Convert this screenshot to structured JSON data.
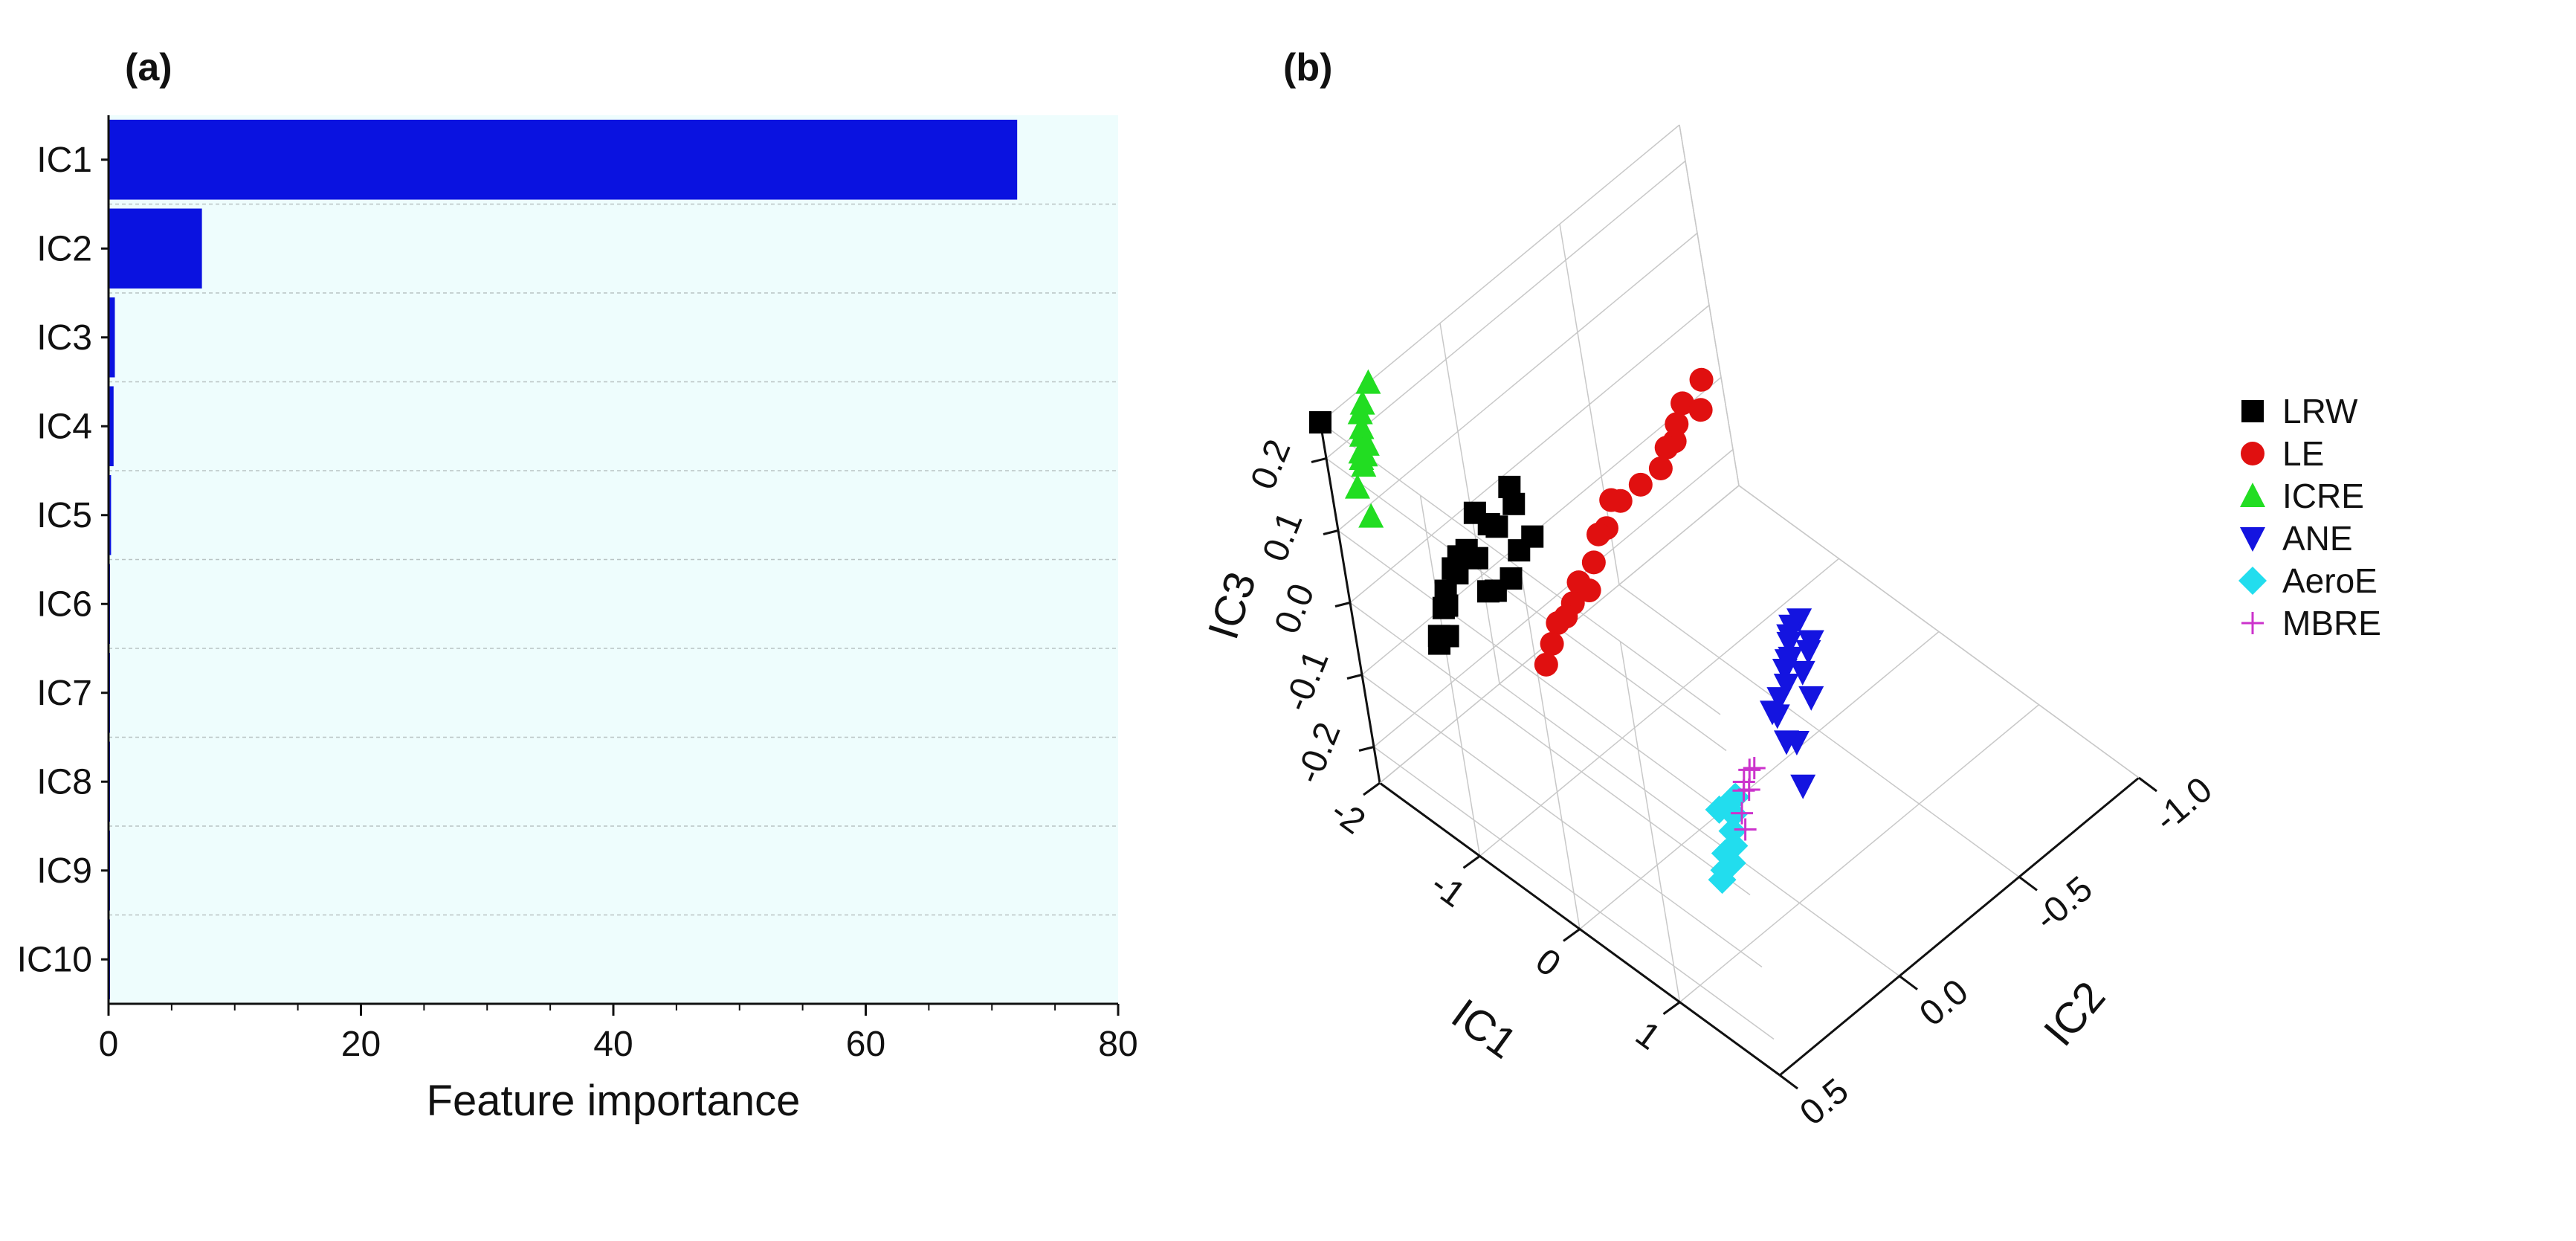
{
  "panels": {
    "a": {
      "label": "(a)"
    },
    "b": {
      "label": "(b)"
    }
  },
  "colors": {
    "bar": "#0a12e0",
    "plot_bg": "#eefdfd",
    "LRW": "#000000",
    "LE": "#e01010",
    "ICRE": "#22dd22",
    "ANE": "#1414e0",
    "AeroE": "#22ddee",
    "MBRE": "#cc33cc"
  },
  "chart_data": [
    {
      "type": "bar",
      "orientation": "horizontal",
      "title": "(a)",
      "categories": [
        "IC1",
        "IC2",
        "IC3",
        "IC4",
        "IC5",
        "IC6",
        "IC7",
        "IC8",
        "IC9",
        "IC10"
      ],
      "values": [
        72.0,
        7.4,
        0.5,
        0.4,
        0.2,
        0.1,
        0.1,
        0.05,
        0.05,
        0.03
      ],
      "xlabel": "Feature importance",
      "ylabel": "",
      "xlim": [
        0,
        80
      ],
      "xticks": [
        0,
        20,
        40,
        60,
        80
      ],
      "xtick_labels": [
        "0",
        "20",
        "40",
        "60",
        "80"
      ],
      "grid": "dashed horizontal separators between bars"
    },
    {
      "type": "scatter3d",
      "title": "(b)",
      "axes": {
        "x": {
          "label": "IC1",
          "range": [
            -2,
            2
          ],
          "ticks": [
            -2,
            -1,
            0,
            1
          ],
          "tick_labels": [
            "-2",
            "-1",
            "0",
            "1"
          ]
        },
        "y": {
          "label": "IC2",
          "range": [
            -1,
            0.5
          ],
          "ticks": [
            -1.0,
            -0.5,
            0.0,
            0.5
          ],
          "tick_labels": [
            "-1.0",
            "-0.5",
            "0.0",
            "0.5"
          ]
        },
        "z": {
          "label": "IC3",
          "range": [
            -0.25,
            0.25
          ],
          "ticks": [
            -0.2,
            -0.1,
            0.0,
            0.1,
            0.2
          ],
          "tick_labels": [
            "-0.2",
            "-0.1",
            "0.0",
            "0.1",
            "0.2"
          ]
        }
      },
      "legend_position": "right",
      "series": [
        {
          "name": "LRW",
          "marker": "square",
          "points": [
            [
              -2,
              0.5,
              0.25
            ],
            [
              -1.65,
              0.1,
              0.05
            ],
            [
              -1.58,
              -0.02,
              0.06
            ],
            [
              -1.5,
              0.0,
              0.05
            ],
            [
              -1.55,
              0.06,
              0.03
            ],
            [
              -1.45,
              0.12,
              0.06
            ],
            [
              -1.4,
              0.2,
              0.04
            ],
            [
              -1.35,
              0.25,
              0.07
            ],
            [
              -1.3,
              0.3,
              0.08
            ],
            [
              -1.25,
              0.33,
              0.07
            ],
            [
              -1.2,
              0.36,
              0.09
            ],
            [
              -1.2,
              0.4,
              0.07
            ],
            [
              -1.15,
              0.42,
              0.06
            ],
            [
              -1.1,
              0.45,
              0.07
            ],
            [
              -1.05,
              0.5,
              0.05
            ],
            [
              -1.0,
              0.52,
              0.05
            ],
            [
              -0.95,
              0.5,
              0.06
            ],
            [
              -1.3,
              0.12,
              0.0
            ],
            [
              -1.25,
              0.2,
              0.01
            ],
            [
              -1.35,
              0.0,
              0.02
            ],
            [
              -1.28,
              0.08,
              0.03
            ],
            [
              -1.18,
              0.25,
              0.03
            ]
          ]
        },
        {
          "name": "LE",
          "marker": "circle",
          "points": [
            [
              -1.3,
              -0.7,
              0.05
            ],
            [
              -1.25,
              -0.6,
              0.05
            ],
            [
              -1.2,
              -0.55,
              0.04
            ],
            [
              -1.1,
              -0.5,
              0.04
            ],
            [
              -1.05,
              -0.45,
              0.05
            ],
            [
              -1.0,
              -0.4,
              0.04
            ],
            [
              -0.95,
              -0.3,
              0.05
            ],
            [
              -0.9,
              -0.2,
              0.06
            ],
            [
              -0.85,
              -0.15,
              0.08
            ],
            [
              -0.8,
              -0.1,
              0.06
            ],
            [
              -0.75,
              -0.05,
              0.07
            ],
            [
              -0.7,
              0.0,
              0.05
            ],
            [
              -0.6,
              0.1,
              0.06
            ],
            [
              -0.55,
              0.15,
              0.05
            ],
            [
              -0.5,
              0.2,
              0.05
            ],
            [
              -0.45,
              0.25,
              0.06
            ],
            [
              -0.4,
              0.3,
              0.05
            ],
            [
              -0.35,
              0.35,
              0.04
            ],
            [
              -0.9,
              -0.55,
              0.09
            ],
            [
              -0.65,
              0.05,
              0.03
            ]
          ]
        },
        {
          "name": "ICRE",
          "marker": "triangle-up",
          "points": [
            [
              -2.0,
              0.3,
              0.25
            ],
            [
              -1.95,
              0.35,
              0.24
            ],
            [
              -1.9,
              0.38,
              0.24
            ],
            [
              -1.85,
              0.4,
              0.23
            ],
            [
              -1.8,
              0.42,
              0.23
            ],
            [
              -1.75,
              0.45,
              0.22
            ],
            [
              -1.7,
              0.46,
              0.23
            ],
            [
              -1.65,
              0.48,
              0.22
            ],
            [
              -1.6,
              0.5,
              0.24
            ],
            [
              -1.55,
              0.5,
              0.25
            ],
            [
              -1.7,
              0.5,
              0.19
            ],
            [
              -1.6,
              0.5,
              0.16
            ],
            [
              -1.82,
              0.4,
              0.21
            ]
          ]
        },
        {
          "name": "ANE",
          "marker": "triangle-down",
          "points": [
            [
              0.6,
              -0.3,
              0.02
            ],
            [
              0.65,
              -0.25,
              0.03
            ],
            [
              0.7,
              -0.22,
              0.03
            ],
            [
              0.75,
              -0.2,
              0.03
            ],
            [
              0.8,
              -0.18,
              0.02
            ],
            [
              0.85,
              -0.15,
              0.03
            ],
            [
              0.9,
              -0.12,
              0.03
            ],
            [
              0.95,
              -0.1,
              0.02
            ],
            [
              1.0,
              -0.05,
              0.02
            ],
            [
              1.05,
              0.0,
              0.02
            ],
            [
              0.8,
              -0.25,
              0.01
            ],
            [
              0.85,
              -0.2,
              0.0
            ],
            [
              0.9,
              -0.2,
              -0.03
            ],
            [
              0.9,
              -0.12,
              -0.07
            ],
            [
              0.95,
              -0.1,
              -0.12
            ],
            [
              1.0,
              -0.05,
              -0.04
            ],
            [
              0.7,
              -0.3,
              0.0
            ],
            [
              0.75,
              -0.28,
              0.01
            ],
            [
              1.1,
              0.0,
              0.02
            ]
          ]
        },
        {
          "name": "AeroE",
          "marker": "diamond",
          "points": [
            [
              1.4,
              0.3,
              0.02
            ],
            [
              1.45,
              0.32,
              0.03
            ],
            [
              1.5,
              0.35,
              0.02
            ],
            [
              1.55,
              0.38,
              0.01
            ],
            [
              1.6,
              0.4,
              0.0
            ],
            [
              1.55,
              0.42,
              -0.01
            ],
            [
              1.6,
              0.45,
              -0.02
            ],
            [
              1.65,
              0.42,
              0.01
            ],
            [
              1.7,
              0.45,
              0.0
            ],
            [
              1.65,
              0.48,
              -0.02
            ],
            [
              1.5,
              0.4,
              0.04
            ]
          ]
        },
        {
          "name": "MBRE",
          "marker": "plus",
          "points": [
            [
              1.3,
              0.2,
              0.02
            ],
            [
              1.32,
              0.22,
              0.0
            ],
            [
              1.35,
              0.25,
              0.01
            ],
            [
              1.38,
              0.28,
              -0.01
            ],
            [
              1.4,
              0.26,
              0.03
            ],
            [
              1.45,
              0.3,
              -0.02
            ],
            [
              1.42,
              0.22,
              0.04
            ]
          ]
        }
      ]
    }
  ]
}
